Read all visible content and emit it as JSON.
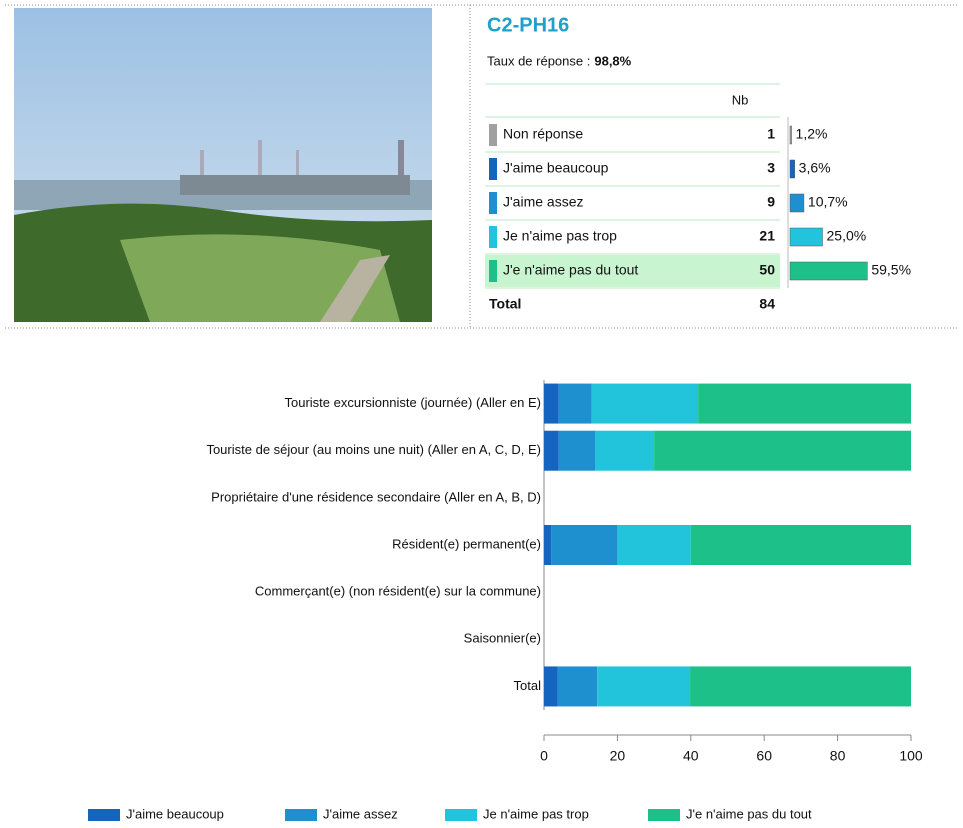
{
  "header": {
    "title": "C2-PH16",
    "response_label": "Taux de réponse :",
    "response_rate": "98,8%"
  },
  "table": {
    "column": "Nb",
    "rows": [
      {
        "label": "Non réponse",
        "count": 1,
        "percent": 1.2,
        "percent_label": "1,2%",
        "color": "#a0a0a0"
      },
      {
        "label": "J'aime beaucoup",
        "count": 3,
        "percent": 3.6,
        "percent_label": "3,6%",
        "color": "#1565c0"
      },
      {
        "label": "J'aime assez",
        "count": 9,
        "percent": 10.7,
        "percent_label": "10,7%",
        "color": "#1e90d0"
      },
      {
        "label": "Je n'aime pas trop",
        "count": 21,
        "percent": 25.0,
        "percent_label": "25,0%",
        "color": "#22c4dc"
      },
      {
        "label": "J'e n'aime pas du tout",
        "count": 50,
        "percent": 59.5,
        "percent_label": "59,5%",
        "color": "#1ec08a"
      }
    ],
    "total": {
      "label": "Total",
      "count": 84
    }
  },
  "chart_data": {
    "type": "stacked-barh",
    "categories": [
      "Touriste excursionniste (journée) (Aller en E)",
      "Touriste de séjour (au moins une nuit) (Aller en A, C, D, E)",
      "Propriétaire d'une résidence secondaire (Aller en A, B, D)",
      "Résident(e) permanent(e)",
      "Commerçant(e) (non résident(e) sur la commune)",
      "Saisonnier(e)",
      "Total"
    ],
    "series": [
      {
        "name": "J'aime beaucoup",
        "color": "#1565c0",
        "values": [
          4,
          4,
          null,
          2,
          null,
          null,
          3.7
        ]
      },
      {
        "name": "J'aime assez",
        "color": "#1e90d0",
        "values": [
          9,
          10,
          null,
          18,
          null,
          null,
          10.8
        ]
      },
      {
        "name": "Je n'aime pas trop",
        "color": "#22c4dc",
        "values": [
          29,
          16,
          null,
          20,
          null,
          null,
          25.3
        ]
      },
      {
        "name": "J'e n'aime pas du tout",
        "color": "#1ec08a",
        "values": [
          58,
          70,
          null,
          60,
          null,
          null,
          60.2
        ]
      }
    ],
    "xlim": [
      0,
      100
    ],
    "xticks": [
      0,
      20,
      40,
      60,
      80,
      100
    ]
  }
}
